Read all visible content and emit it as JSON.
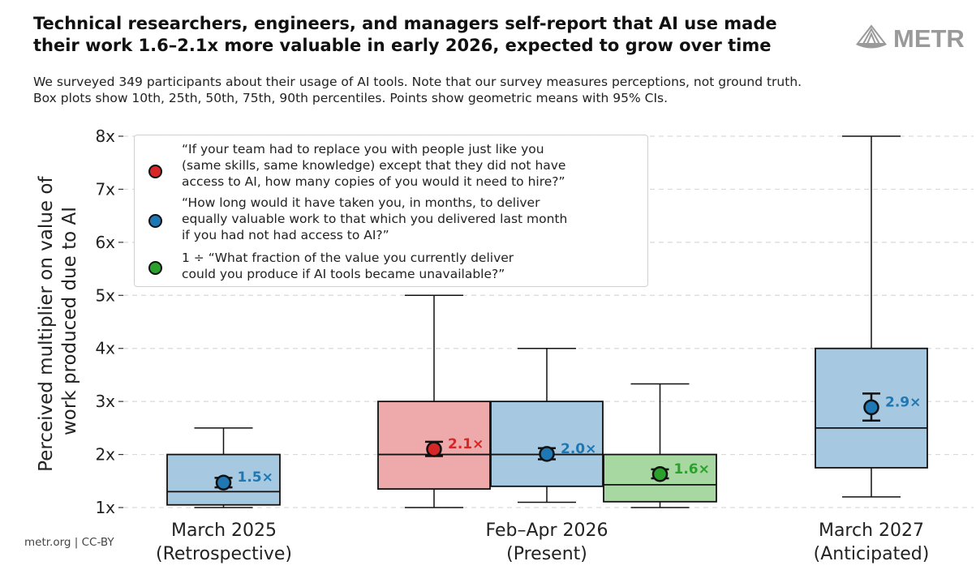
{
  "header": {
    "title_lines": [
      "Technical researchers, engineers, and managers self-report that AI use made",
      "their work 1.6–2.1x more valuable in early 2026, expected to grow over time"
    ],
    "subtitle_lines": [
      "We surveyed 349 participants about their usage of AI tools. Note that our survey measures perceptions, not ground truth.",
      "Box plots show 10th, 25th, 50th, 75th, 90th percentiles. Points show geometric means with 95% CIs."
    ],
    "logo_text": "METR"
  },
  "credit": "metr.org  |  CC-BY",
  "colors": {
    "red": "#d62728",
    "blue": "#1f77b4",
    "green": "#2ca02c",
    "red_box": "#eea9aa",
    "blue_box": "#a6c8e0",
    "green_box": "#a8d8a2"
  },
  "legend": [
    {
      "color_key": "red",
      "lines": [
        "“If your team had to replace you with people just like you",
        "(same skills, same knowledge) except that they did not have",
        "access to AI, how many copies of you would it need to hire?”"
      ]
    },
    {
      "color_key": "blue",
      "lines": [
        "“How long would it have taken you, in months, to deliver",
        "equally valuable work to that which you delivered last month",
        "if you had not had access to AI?”"
      ]
    },
    {
      "color_key": "green",
      "lines": [
        "1 ÷ “What fraction of the value you currently deliver",
        "could you produce if AI tools became unavailable?”"
      ]
    }
  ],
  "chart_data": {
    "type": "box",
    "ylabel_lines": [
      "Perceived multiplier on value of",
      "work produced due to AI"
    ],
    "ylim": [
      1,
      8
    ],
    "yticks": [
      1,
      2,
      3,
      4,
      5,
      6,
      7,
      8
    ],
    "ytick_labels": [
      "1x",
      "2x",
      "3x",
      "4x",
      "5x",
      "6x",
      "7x",
      "8x"
    ],
    "grid": "horizontal dashed",
    "legend_position": "top-left",
    "groups": [
      {
        "label_lines": [
          "March 2025",
          "(Retrospective)"
        ]
      },
      {
        "label_lines": [
          "Feb–Apr 2026",
          "(Present)"
        ]
      },
      {
        "label_lines": [
          "March 2027",
          "(Anticipated)"
        ]
      }
    ],
    "boxes": [
      {
        "group": 0,
        "series": "blue",
        "p10": 1.0,
        "p25": 1.05,
        "p50": 1.3,
        "p75": 2.0,
        "p90": 2.5,
        "mean": 1.47,
        "ci_low": 1.38,
        "ci_high": 1.56,
        "mean_label": "1.5×"
      },
      {
        "group": 1,
        "series": "red",
        "p10": 1.0,
        "p25": 1.35,
        "p50": 2.0,
        "p75": 3.0,
        "p90": 5.0,
        "mean": 2.1,
        "ci_low": 1.97,
        "ci_high": 2.24,
        "mean_label": "2.1×"
      },
      {
        "group": 1,
        "series": "blue",
        "p10": 1.1,
        "p25": 1.4,
        "p50": 2.0,
        "p75": 3.0,
        "p90": 4.0,
        "mean": 2.01,
        "ci_low": 1.91,
        "ci_high": 2.12,
        "mean_label": "2.0×"
      },
      {
        "group": 1,
        "series": "green",
        "p10": 1.0,
        "p25": 1.11,
        "p50": 1.43,
        "p75": 2.0,
        "p90": 3.33,
        "mean": 1.63,
        "ci_low": 1.55,
        "ci_high": 1.72,
        "mean_label": "1.6×"
      },
      {
        "group": 2,
        "series": "blue",
        "p10": 1.2,
        "p25": 1.75,
        "p50": 2.5,
        "p75": 4.0,
        "p90": 8.0,
        "mean": 2.89,
        "ci_low": 2.64,
        "ci_high": 3.15,
        "mean_label": "2.9×"
      }
    ]
  }
}
